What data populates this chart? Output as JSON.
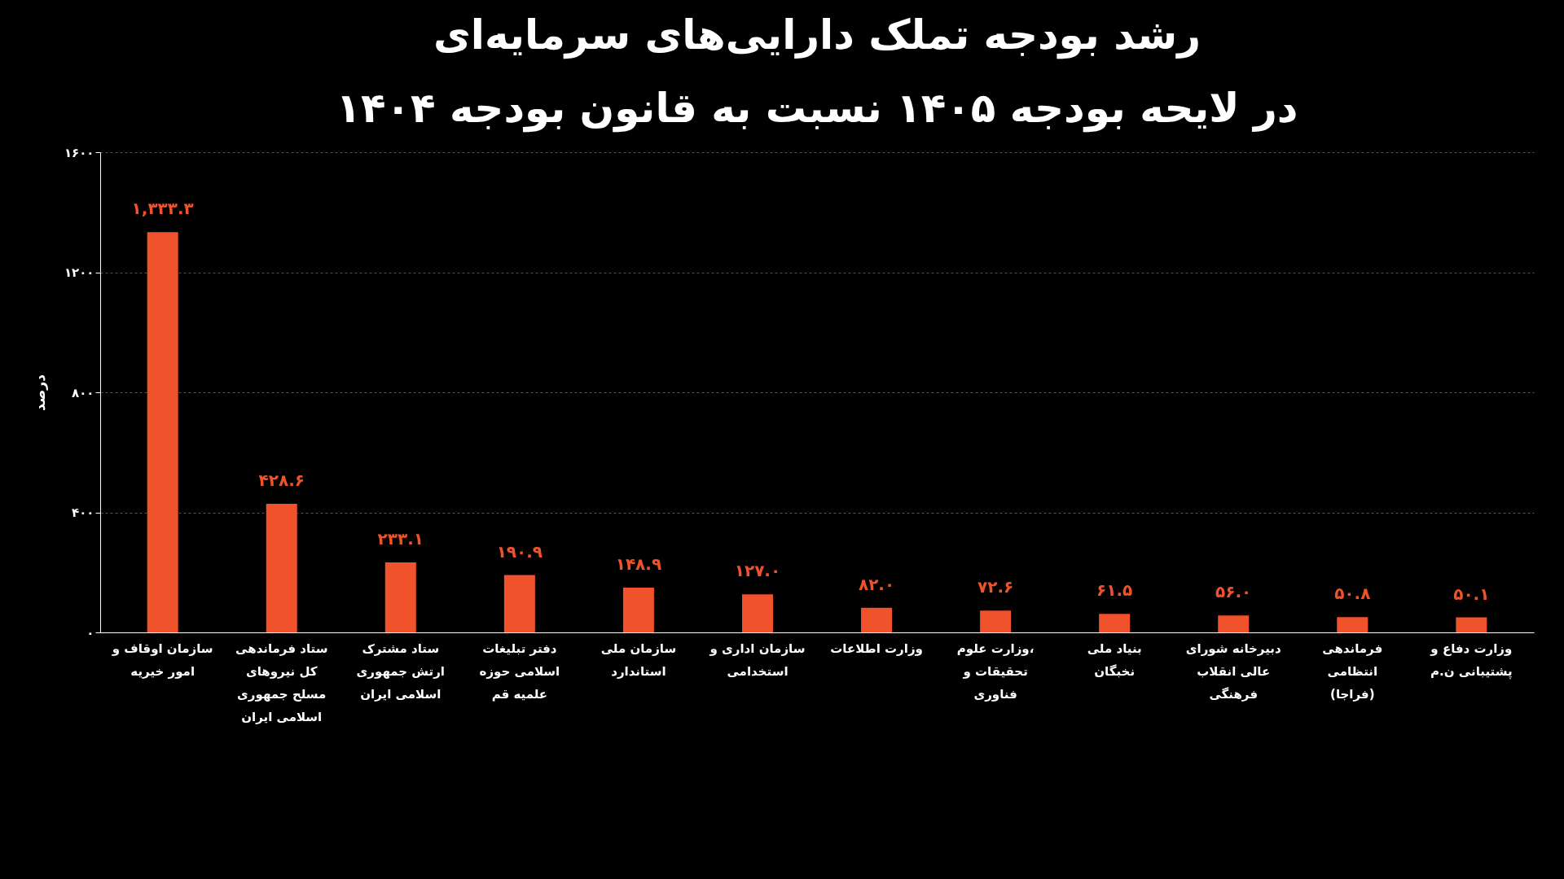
{
  "chart_data": {
    "type": "bar",
    "title": "رشد بودجه تملک دارایی‌های سرمایه‌ای\nدر لایحه بودجه ۱۴۰۵ نسبت به قانون بودجه ۱۴۰۴",
    "ylabel": "درصد",
    "categories": [
      "سازمان اوقاف و امور خیریه",
      "ستاد فرماندهی کل نیروهای مسلح جمهوری اسلامی ایران",
      "ستاد مشترک ارتش جمهوری اسلامی ایران",
      "دفتر تبلیغات اسلامی حوزه علمیه قم",
      "سازمان ملی استاندارد",
      "سازمان اداری و استخدامی",
      "وزارت اطلاعات",
      "وزارت علوم، تحقیقات و فناوری",
      "بنیاد ملی نخبگان",
      "دبیرخانه شورای عالی انقلاب فرهنگی",
      "فرماندهی انتظامی (فراجا)",
      "وزارت دفاع و پشتیبانی ن.م"
    ],
    "values": [
      1333.3,
      428.6,
      233.1,
      190.9,
      148.9,
      127.0,
      82.0,
      72.6,
      61.5,
      56.0,
      50.8,
      50.1
    ],
    "value_labels": [
      "۱,۳۳۳.۳",
      "۴۲۸.۶",
      "۲۳۳.۱",
      "۱۹۰.۹",
      "۱۴۸.۹",
      "۱۲۷.۰",
      "۸۲.۰",
      "۷۲.۶",
      "۶۱.۵",
      "۵۶.۰",
      "۵۰.۸",
      "۵۰.۱"
    ],
    "color": "#f0522b",
    "ylim": [
      0,
      1600
    ],
    "yticks": [
      {
        "value": 0,
        "label": "۰"
      },
      {
        "value": 400,
        "label": "۴۰۰"
      },
      {
        "value": 800,
        "label": "۸۰۰"
      },
      {
        "value": 1200,
        "label": "۱۲۰۰"
      },
      {
        "value": 1600,
        "label": "۱۶۰۰"
      }
    ],
    "grid": "y"
  }
}
